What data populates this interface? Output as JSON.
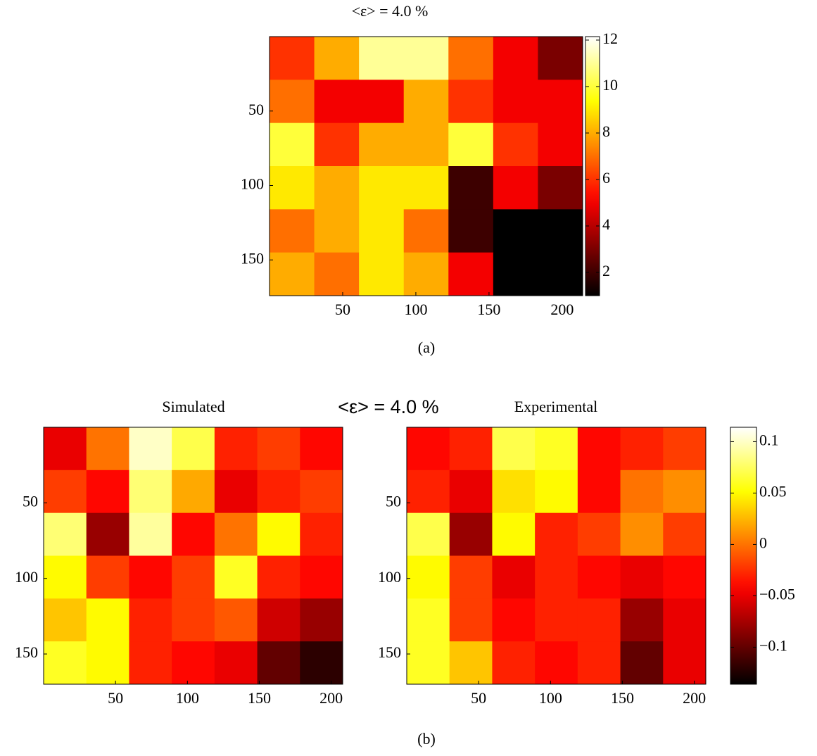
{
  "chart_data": [
    {
      "type": "heatmap",
      "title": "<ε> = 4.0 %",
      "xlim": [
        0,
        214
      ],
      "ylim": [
        0,
        174
      ],
      "xticks": [
        50,
        100,
        150,
        200
      ],
      "yticks": [
        50,
        100,
        150
      ],
      "z": [
        [
          6,
          8,
          11,
          11,
          7,
          5,
          3
        ],
        [
          7,
          5,
          5,
          8,
          6,
          5,
          5
        ],
        [
          10,
          6,
          8,
          8,
          10,
          6,
          5
        ],
        [
          9,
          8,
          9,
          9,
          2,
          5,
          3
        ],
        [
          7,
          8,
          9,
          7,
          2,
          1,
          1
        ],
        [
          8,
          7,
          9,
          8,
          5,
          1,
          1
        ]
      ],
      "colorbar": {
        "clim": [
          1,
          12.15
        ],
        "ticks": [
          2,
          4,
          6,
          8,
          10,
          12
        ]
      }
    },
    {
      "type": "heatmap",
      "title": "Simulated",
      "xlim": [
        0,
        208
      ],
      "ylim": [
        0,
        170
      ],
      "xticks": [
        50,
        100,
        150,
        200
      ],
      "yticks": [
        50,
        100,
        150
      ],
      "z": [
        [
          -0.05,
          0,
          0.1,
          0.07,
          -0.03,
          -0.02,
          -0.04
        ],
        [
          -0.02,
          -0.04,
          0.08,
          0.02,
          -0.05,
          -0.03,
          -0.02
        ],
        [
          0.08,
          -0.08,
          0.09,
          -0.04,
          0,
          0.05,
          -0.03
        ],
        [
          0.05,
          -0.02,
          -0.04,
          -0.02,
          0.06,
          -0.03,
          -0.04
        ],
        [
          0.03,
          0.05,
          -0.03,
          -0.02,
          -0.01,
          -0.06,
          -0.08
        ],
        [
          0.06,
          0.05,
          -0.03,
          -0.04,
          -0.05,
          -0.1,
          -0.12
        ]
      ],
      "colorbar": {
        "clim": [
          -0.136,
          0.114
        ]
      }
    },
    {
      "type": "heatmap",
      "title": "Experimental",
      "xlim": [
        0,
        208
      ],
      "ylim": [
        0,
        170
      ],
      "xticks": [
        50,
        100,
        150,
        200
      ],
      "yticks": [
        50,
        100,
        150
      ],
      "z": [
        [
          -0.04,
          -0.03,
          0.07,
          0.06,
          -0.04,
          -0.03,
          -0.02
        ],
        [
          -0.03,
          -0.05,
          0.04,
          0.05,
          -0.04,
          0,
          0.01
        ],
        [
          0.07,
          -0.08,
          0.05,
          -0.03,
          -0.02,
          0.01,
          -0.02
        ],
        [
          0.05,
          -0.02,
          -0.05,
          -0.03,
          -0.04,
          -0.05,
          -0.04
        ],
        [
          0.06,
          -0.02,
          -0.04,
          -0.03,
          -0.03,
          -0.08,
          -0.05
        ],
        [
          0.06,
          0.03,
          -0.03,
          -0.04,
          -0.03,
          -0.1,
          -0.05
        ]
      ],
      "colorbar": {
        "clim": [
          -0.136,
          0.114
        ],
        "ticks": [
          {
            "value": -0.1,
            "label": "−0.1"
          },
          {
            "value": -0.05,
            "label": "−0.05"
          },
          0,
          0.05,
          0.1
        ]
      }
    }
  ],
  "panel_b_title": "<ε> = 4.0 %",
  "captions": [
    "(a)",
    "(b)"
  ]
}
